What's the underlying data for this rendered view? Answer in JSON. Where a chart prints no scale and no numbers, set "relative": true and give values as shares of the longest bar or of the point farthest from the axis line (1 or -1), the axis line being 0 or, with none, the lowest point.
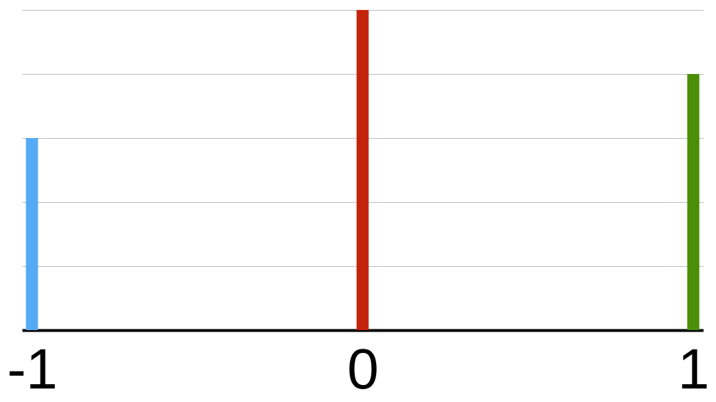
{
  "chart_data": {
    "type": "bar",
    "relative": true,
    "categories": [
      "-1",
      "0",
      "1"
    ],
    "values": [
      0.6,
      1,
      0.8
    ],
    "colors": [
      "#55aaf5",
      "#c4230b",
      "#4b8f08"
    ],
    "grid": "y"
  }
}
